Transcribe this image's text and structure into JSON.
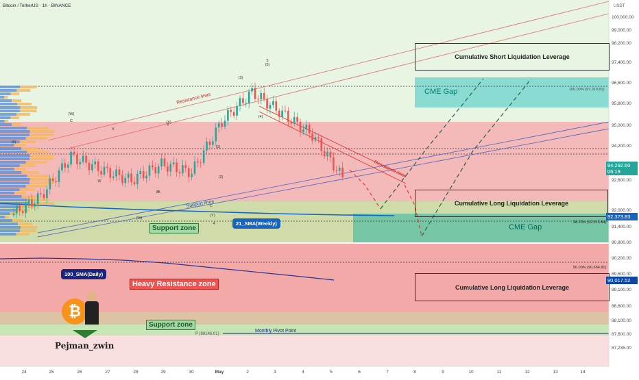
{
  "header": {
    "title": "Bitcoin / TetherUS · 1h · BINANCE"
  },
  "axis": {
    "currency": "USDT",
    "price_ticks": [
      "100,000.00",
      "99,000.00",
      "98,200.00",
      "97,400.00",
      "96,600.00",
      "95,800.00",
      "95,000.00",
      "94,200.00",
      "93,700.00",
      "92,600.00",
      "92,000.00",
      "91,400.00",
      "90,800.00",
      "90,200.00",
      "89,600.00",
      "89,100.00",
      "88,600.00",
      "88,100.00",
      "87,600.00",
      "87,235.00"
    ],
    "time_ticks": [
      "24",
      "25",
      "26",
      "27",
      "28",
      "29",
      "30",
      "May",
      "2",
      "3",
      "4",
      "5",
      "6",
      "7",
      "8",
      "9",
      "10",
      "11",
      "12",
      "13",
      "14"
    ]
  },
  "price_tags": {
    "current": {
      "value": "94,292.60",
      "timer": "06:19",
      "color": "#26a69a"
    },
    "sma": {
      "value": "92,373.83",
      "color": "#1565c0"
    },
    "sma100": {
      "value": "90,017.52",
      "color": "#0d47a1"
    }
  },
  "boxes": {
    "short_liq": "Cumulative Short Liquidation Leverage",
    "long_liq_1": "Cumulative Long Liquidation Leverage",
    "long_liq_2": "Cumulative Long Liquidation Leverage"
  },
  "zones": {
    "cme_gap_top": "CME Gap",
    "cme_gap_bottom": "CME Gap",
    "support_zone_1": "Support zone",
    "support_zone_2": "Support zone",
    "heavy_resistance": "Heavy Resistance zone"
  },
  "indicators": {
    "sma21": "21_SMA(Weekly)",
    "sma100": "100_SMA(Daily)"
  },
  "annotations": {
    "resistance_lines_1": "Resistance lines",
    "resistance_lines_2": "Resistance lines",
    "support_lines": "Support lines",
    "monthly_pivot": "Monthly Pivot Point",
    "pivot_value": "P (88146.01)",
    "fib_100": "100.00% (97,310.81)",
    "fib_382": "38.20% (92,313.84)",
    "fib_50": "50.00% (90,654.81)",
    "author": "Pejman_zwin"
  },
  "wave_labels": [
    "(W)",
    "C",
    "(5)",
    "(3)",
    "(4)",
    "(1)",
    "(2)",
    "(Y)",
    "(X)",
    "(W)",
    "X",
    "W",
    "Y",
    "A",
    "B",
    "C",
    "4",
    "5",
    "(5)"
  ],
  "colors": {
    "resistance_band": "#f2a6a6",
    "heavy_resistance": "#f4a7a7",
    "support_band": "#c9d9a0",
    "cme_gap_top": "#7fd9d0",
    "cme_gap_bottom": "#66c2a5",
    "bull": "#26a69a",
    "bear": "#ef5350"
  },
  "chart_data": {
    "type": "line",
    "title": "Bitcoin / TetherUS · 1h · BINANCE",
    "xlabel": "",
    "ylabel": "USDT",
    "ylim": [
      87235,
      100000
    ],
    "x": [
      "24",
      "25",
      "26",
      "27",
      "28",
      "29",
      "30",
      "May",
      "2",
      "3",
      "4",
      "5"
    ],
    "series": [
      {
        "name": "BTCUSDT",
        "values": [
          92600,
          93300,
          94800,
          94300,
          93900,
          94500,
          94200,
          96100,
          97200,
          96400,
          95600,
          94000
        ]
      }
    ],
    "current_price": 94292.6
  }
}
